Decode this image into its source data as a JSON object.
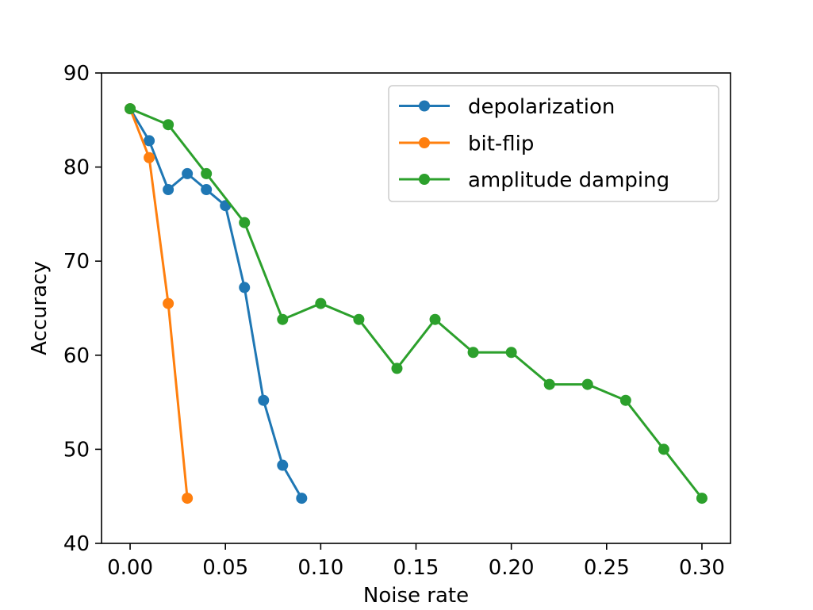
{
  "chart_data": {
    "type": "line",
    "title": "",
    "xlabel": "Noise rate",
    "ylabel": "Accuracy",
    "xlim": [
      -0.015,
      0.315
    ],
    "ylim": [
      40,
      90
    ],
    "xticks": [
      0.0,
      0.05,
      0.1,
      0.15,
      0.2,
      0.25,
      0.3
    ],
    "xtick_labels": [
      "0.00",
      "0.05",
      "0.10",
      "0.15",
      "0.20",
      "0.25",
      "0.30"
    ],
    "yticks": [
      40,
      50,
      60,
      70,
      80,
      90
    ],
    "ytick_labels": [
      "40",
      "50",
      "60",
      "70",
      "80",
      "90"
    ],
    "grid": false,
    "legend_position": "top-right",
    "series": [
      {
        "name": "depolarization",
        "color": "#1f77b4",
        "x": [
          0.0,
          0.01,
          0.02,
          0.03,
          0.04,
          0.05,
          0.06,
          0.07,
          0.08,
          0.09
        ],
        "y": [
          86.2,
          82.8,
          77.6,
          79.3,
          77.6,
          75.9,
          67.2,
          55.2,
          48.3,
          44.8
        ]
      },
      {
        "name": "bit-flip",
        "color": "#ff7f0e",
        "x": [
          0.0,
          0.01,
          0.02,
          0.03
        ],
        "y": [
          86.2,
          81.0,
          65.5,
          44.8
        ]
      },
      {
        "name": "amplitude damping",
        "color": "#2ca02c",
        "x": [
          0.0,
          0.02,
          0.04,
          0.06,
          0.08,
          0.1,
          0.12,
          0.14,
          0.16,
          0.18,
          0.2,
          0.22,
          0.24,
          0.26,
          0.28,
          0.3
        ],
        "y": [
          86.2,
          84.5,
          79.3,
          74.1,
          63.8,
          65.5,
          63.8,
          58.6,
          63.8,
          60.3,
          60.3,
          56.9,
          56.9,
          55.2,
          50.0,
          44.8
        ]
      }
    ]
  }
}
